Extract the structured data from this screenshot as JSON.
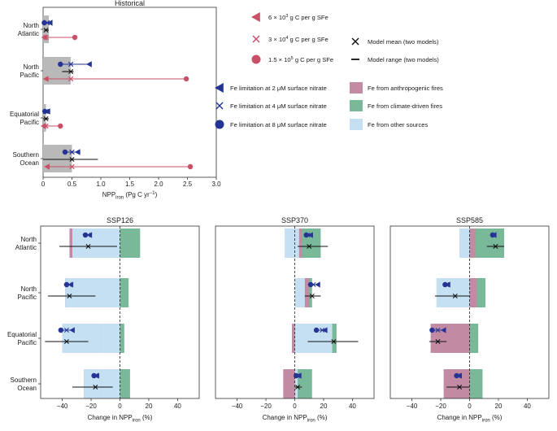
{
  "chart_data": [
    {
      "type": "bar",
      "title": "Historical",
      "xlabel": "NPP_iron (Pg C yr⁻¹)",
      "xlabel_main": "NPP",
      "xlabel_sub": "iron",
      "xlabel_unit": " (Pg C yr",
      "xlabel_sup": "−1",
      "xlabel_close": ")",
      "xlim": [
        0,
        3
      ],
      "xticks": [
        "0",
        "0.5",
        "1.0",
        "1.5",
        "2.0",
        "2.5",
        "3.0"
      ],
      "categories": [
        "North Atlantic",
        "North Pacific",
        "Equatorial Pacific",
        "Southern Ocean"
      ],
      "category_lines": [
        [
          "North",
          "Atlantic"
        ],
        [
          "North",
          "Pacific"
        ],
        [
          "Equatorial",
          "Pacific"
        ],
        [
          "Southern",
          "Ocean"
        ]
      ],
      "bars": [
        0.1,
        0.48,
        0.05,
        0.5
      ],
      "model_mean": [
        0.05,
        0.48,
        0.05,
        0.5
      ],
      "model_range": [
        [
          0.02,
          0.1
        ],
        [
          0.33,
          0.53
        ],
        [
          0.0,
          0.1
        ],
        [
          0.0,
          0.95
        ]
      ],
      "fe_limitation_markers": {
        "at_2uM": [
          0.12,
          0.8,
          0.08,
          0.6
        ],
        "at_4uM": [
          0.07,
          0.48,
          0.05,
          0.5
        ],
        "at_8uM": [
          0.02,
          0.3,
          0.03,
          0.38
        ]
      },
      "solubility_markers": {
        "6e3": [
          0.02,
          0.05,
          0.01,
          0.07
        ],
        "3e4": [
          0.05,
          0.48,
          0.05,
          0.5
        ],
        "1.5e5": [
          0.55,
          2.48,
          0.3,
          2.55
        ]
      }
    },
    {
      "type": "bar",
      "title": "SSP126",
      "xlabel": "Change in NPP_iron (%)",
      "xlim": [
        -55,
        55
      ],
      "xticks": [
        "−40",
        "−20",
        "0",
        "20",
        "40"
      ],
      "categories": [
        "North Atlantic",
        "North Pacific",
        "Equatorial Pacific",
        "Southern Ocean"
      ],
      "stacked_bars": [
        {
          "anthropogenic_fires": [
            -35,
            -38,
            -40,
            -25
          ],
          "other_sources": [
            -31,
            -37,
            -13,
            -13
          ],
          "climate_driven_fires": [
            14,
            6,
            3,
            7
          ]
        },
        {
          "anthropogenic_fires": [
            0,
            0,
            0,
            0
          ],
          "other_sources": [
            -2,
            -1,
            -27,
            -12
          ],
          "climate_driven_fires": [
            0,
            0,
            0,
            0
          ]
        }
      ],
      "model_mean": [
        -22,
        -35,
        -37,
        -17
      ],
      "model_range": [
        [
          -42,
          -2
        ],
        [
          -50,
          -17
        ],
        [
          -52,
          -22
        ],
        [
          -33,
          -5
        ]
      ],
      "fe_limitation_markers": {
        "at_2uM": [
          -21,
          -34,
          -33,
          -16
        ],
        "at_4uM": [
          -22,
          -35,
          -37,
          -17
        ],
        "at_8uM": [
          -24,
          -37,
          -41,
          -18
        ]
      }
    },
    {
      "type": "bar",
      "title": "SSP370",
      "xlabel": "Change in NPP_iron (%)",
      "xlim": [
        -55,
        55
      ],
      "xticks": [
        "−40",
        "−20",
        "0",
        "20",
        "40"
      ],
      "categories": [
        "North Atlantic",
        "North Pacific",
        "Equatorial Pacific",
        "Southern Ocean"
      ],
      "bars_negative": {
        "anthropogenic_fires": [
          0,
          0,
          -2,
          -8
        ],
        "other_sources": [
          -7,
          0,
          0,
          0
        ]
      },
      "bars_positive": {
        "other_sources": [
          3,
          7,
          26,
          2
        ],
        "anthropogenic_fires": [
          5,
          10,
          0,
          0
        ],
        "climate_driven_fires": [
          18,
          12,
          29,
          12
        ]
      },
      "model_mean": [
        10,
        12,
        27,
        2
      ],
      "model_range": [
        [
          2,
          23
        ],
        [
          7,
          18
        ],
        [
          9,
          44
        ],
        [
          0,
          5
        ]
      ],
      "fe_limitation_markers": {
        "at_2uM": [
          11,
          16,
          21,
          3
        ],
        "at_4uM": [
          9,
          13,
          19,
          2
        ],
        "at_8uM": [
          8,
          11,
          15,
          1
        ]
      }
    },
    {
      "type": "bar",
      "title": "SSP585",
      "xlabel": "Change in NPP_iron (%)",
      "xlim": [
        -55,
        55
      ],
      "xticks": [
        "−40",
        "−20",
        "0",
        "20",
        "40"
      ],
      "categories": [
        "North Atlantic",
        "North Pacific",
        "Equatorial Pacific",
        "Southern Ocean"
      ],
      "bars_negative": {
        "other_sources": [
          -7,
          -23,
          -10,
          -10
        ],
        "anthropogenic_fires": [
          0,
          0,
          -27,
          -18
        ]
      },
      "bars_positive": {
        "anthropogenic_fires": [
          4,
          5,
          0,
          0
        ],
        "climate_driven_fires": [
          24,
          11,
          6,
          9
        ]
      },
      "model_mean": [
        18,
        -10,
        -22,
        -7
      ],
      "model_range": [
        [
          12,
          24
        ],
        [
          -24,
          0
        ],
        [
          -28,
          -16
        ],
        [
          -16,
          0
        ]
      ],
      "fe_limitation_markers": {
        "at_2uM": [
          17,
          -15,
          -18,
          -7
        ],
        "at_4uM": [
          17,
          -16,
          -22,
          -8
        ],
        "at_8uM": [
          16,
          -17,
          -26,
          -9
        ]
      }
    }
  ],
  "legend": {
    "solubility": [
      {
        "symbol": "triangle-left",
        "base": "6 × 10",
        "exp": "3",
        "tail": " g C per g SFe"
      },
      {
        "symbol": "x",
        "base": "3 × 10",
        "exp": "4",
        "tail": " g C per g SFe"
      },
      {
        "symbol": "circle",
        "base": "1.5 × 10",
        "exp": "5",
        "tail": " g C per g SFe"
      }
    ],
    "model": [
      {
        "symbol": "x",
        "label": "Model mean (two models)"
      },
      {
        "symbol": "line",
        "label": "Model range (two models)"
      }
    ],
    "fe_limitation": [
      {
        "symbol": "triangle-left",
        "label": "Fe limitation at 2 μM surface nitrate"
      },
      {
        "symbol": "x",
        "label": "Fe limitation at 4 μM surface nitrate"
      },
      {
        "symbol": "circle",
        "label": "Fe limitation at 8 μM surface nitrate"
      }
    ],
    "sources": [
      {
        "key": "anthropogenic_fires",
        "label": "Fe from anthropogenic fires"
      },
      {
        "key": "climate_driven_fires",
        "label": "Fe from climate-driven fires"
      },
      {
        "key": "other_sources",
        "label": "Fe from other sources"
      }
    ]
  },
  "xlabel_change": {
    "prefix": "Change in NPP",
    "sub": "iron",
    "suffix": " (%)"
  },
  "colors": {
    "historical_bar": "#b9b9b9",
    "anthropogenic_fires": "#c38aa3",
    "climate_driven_fires": "#7ab89a",
    "other_sources": "#c4e0f2",
    "solubility_markers": "#c85067",
    "fe_limitation_markers": "#253494",
    "model": "#111111"
  }
}
